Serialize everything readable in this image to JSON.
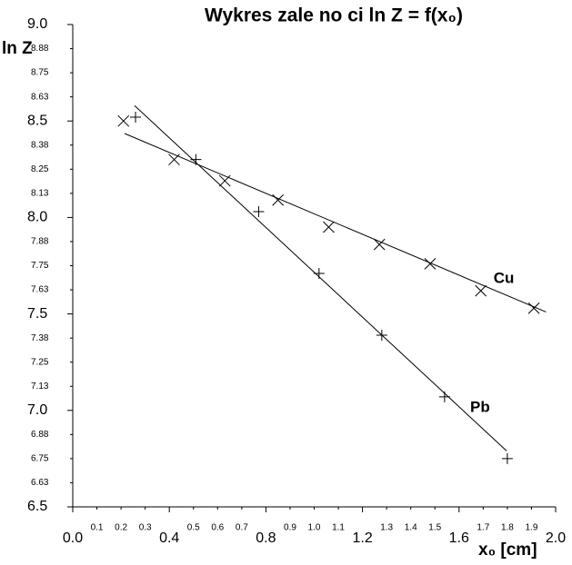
{
  "chart_data": {
    "type": "scatter",
    "title": "Wykres zale  no  ci ln Z = f(x₀)",
    "ylabel": "ln Z",
    "xlabel": "x₀ [cm]",
    "xlim": [
      0,
      2
    ],
    "ylim": [
      6.5,
      9
    ],
    "xticks": [
      {
        "value": 0,
        "label": "0.0"
      },
      0.4,
      0.8,
      1.2,
      1.6,
      {
        "value": 2,
        "label": "2.0"
      }
    ],
    "xticks_minor": [
      0.1,
      0.2,
      0.3,
      0.5,
      0.6,
      0.7,
      0.9,
      {
        "value": 1,
        "label": "1.0"
      },
      1.1,
      1.3,
      1.4,
      1.5,
      1.7,
      1.8,
      1.9
    ],
    "yticks": [
      {
        "value": 9,
        "label": "9.0"
      },
      8.5,
      {
        "value": 8,
        "label": "8.0"
      },
      7.5,
      {
        "value": 7,
        "label": "7.0"
      },
      6.5
    ],
    "yticks_minor": [
      {
        "value": 8.875,
        "label": "8.88"
      },
      8.75,
      {
        "value": 8.625,
        "label": "8.63"
      },
      {
        "value": 8.375,
        "label": "8.38"
      },
      8.25,
      {
        "value": 8.125,
        "label": "8.13"
      },
      {
        "value": 7.875,
        "label": "7.88"
      },
      7.75,
      {
        "value": 7.625,
        "label": "7.63"
      },
      {
        "value": 7.375,
        "label": "7.38"
      },
      7.25,
      {
        "value": 7.125,
        "label": "7.13"
      },
      {
        "value": 6.875,
        "label": "6.88"
      },
      6.75,
      {
        "value": 6.625,
        "label": "6.63"
      }
    ],
    "series": [
      {
        "name": "Cu",
        "color": "#000000",
        "marker": "x",
        "x": [
          0.21,
          0.42,
          0.63,
          0.85,
          1.06,
          1.27,
          1.48,
          1.69,
          1.91
        ],
        "values": [
          8.5,
          8.3,
          8.19,
          8.09,
          7.95,
          7.86,
          7.76,
          7.62,
          7.53
        ],
        "fit": {
          "x": [
            0.215,
            1.96
          ],
          "values": [
            8.435,
            7.51
          ]
        }
      },
      {
        "name": "Pb",
        "color": "#000000",
        "marker": "+",
        "x": [
          0.26,
          0.51,
          0.77,
          1.02,
          1.28,
          1.54,
          1.8
        ],
        "values": [
          8.52,
          8.3,
          8.03,
          7.71,
          7.39,
          7.07,
          6.75
        ],
        "fit": {
          "x": [
            0.256,
            1.797
          ],
          "values": [
            8.58,
            6.79
          ]
        }
      }
    ]
  }
}
